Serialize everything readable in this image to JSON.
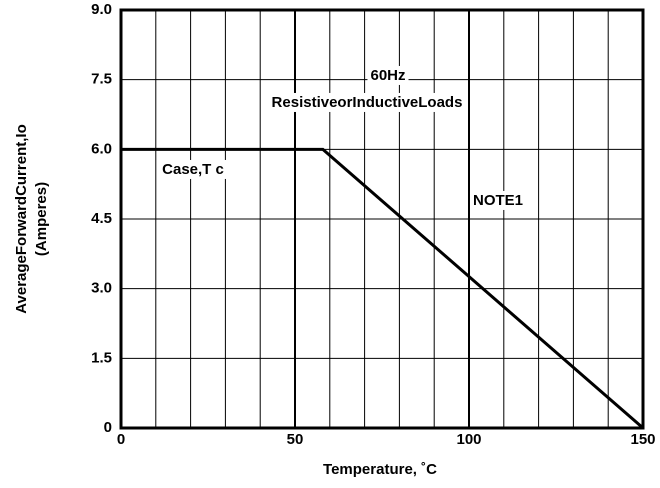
{
  "chart_data": {
    "type": "line",
    "xlabel": "Temperature, ˚C",
    "ylabel": [
      "AverageForwardCurrent,Io",
      "(Amperes)"
    ],
    "annotations": [
      "60Hz",
      "ResistiveorInductiveLoads",
      "Case,T c",
      "NOTE1"
    ],
    "x": [
      0,
      58,
      150
    ],
    "series": [
      {
        "color": "#000000",
        "values": [
          6,
          6,
          0
        ]
      }
    ],
    "xlim": [
      0,
      150
    ],
    "xticks": [
      0,
      50,
      100,
      150
    ],
    "x_minor_ticks": [
      10,
      20,
      30,
      40,
      60,
      70,
      80,
      90,
      110,
      120,
      130,
      140
    ],
    "ylim": [
      0,
      9
    ],
    "yticks": [
      0,
      1.5,
      {
        "value": 3,
        "label": "3.0"
      },
      4.5,
      {
        "value": 6,
        "label": "6.0"
      },
      7.5,
      {
        "value": 9,
        "label": "9.0"
      }
    ],
    "grid": true
  }
}
